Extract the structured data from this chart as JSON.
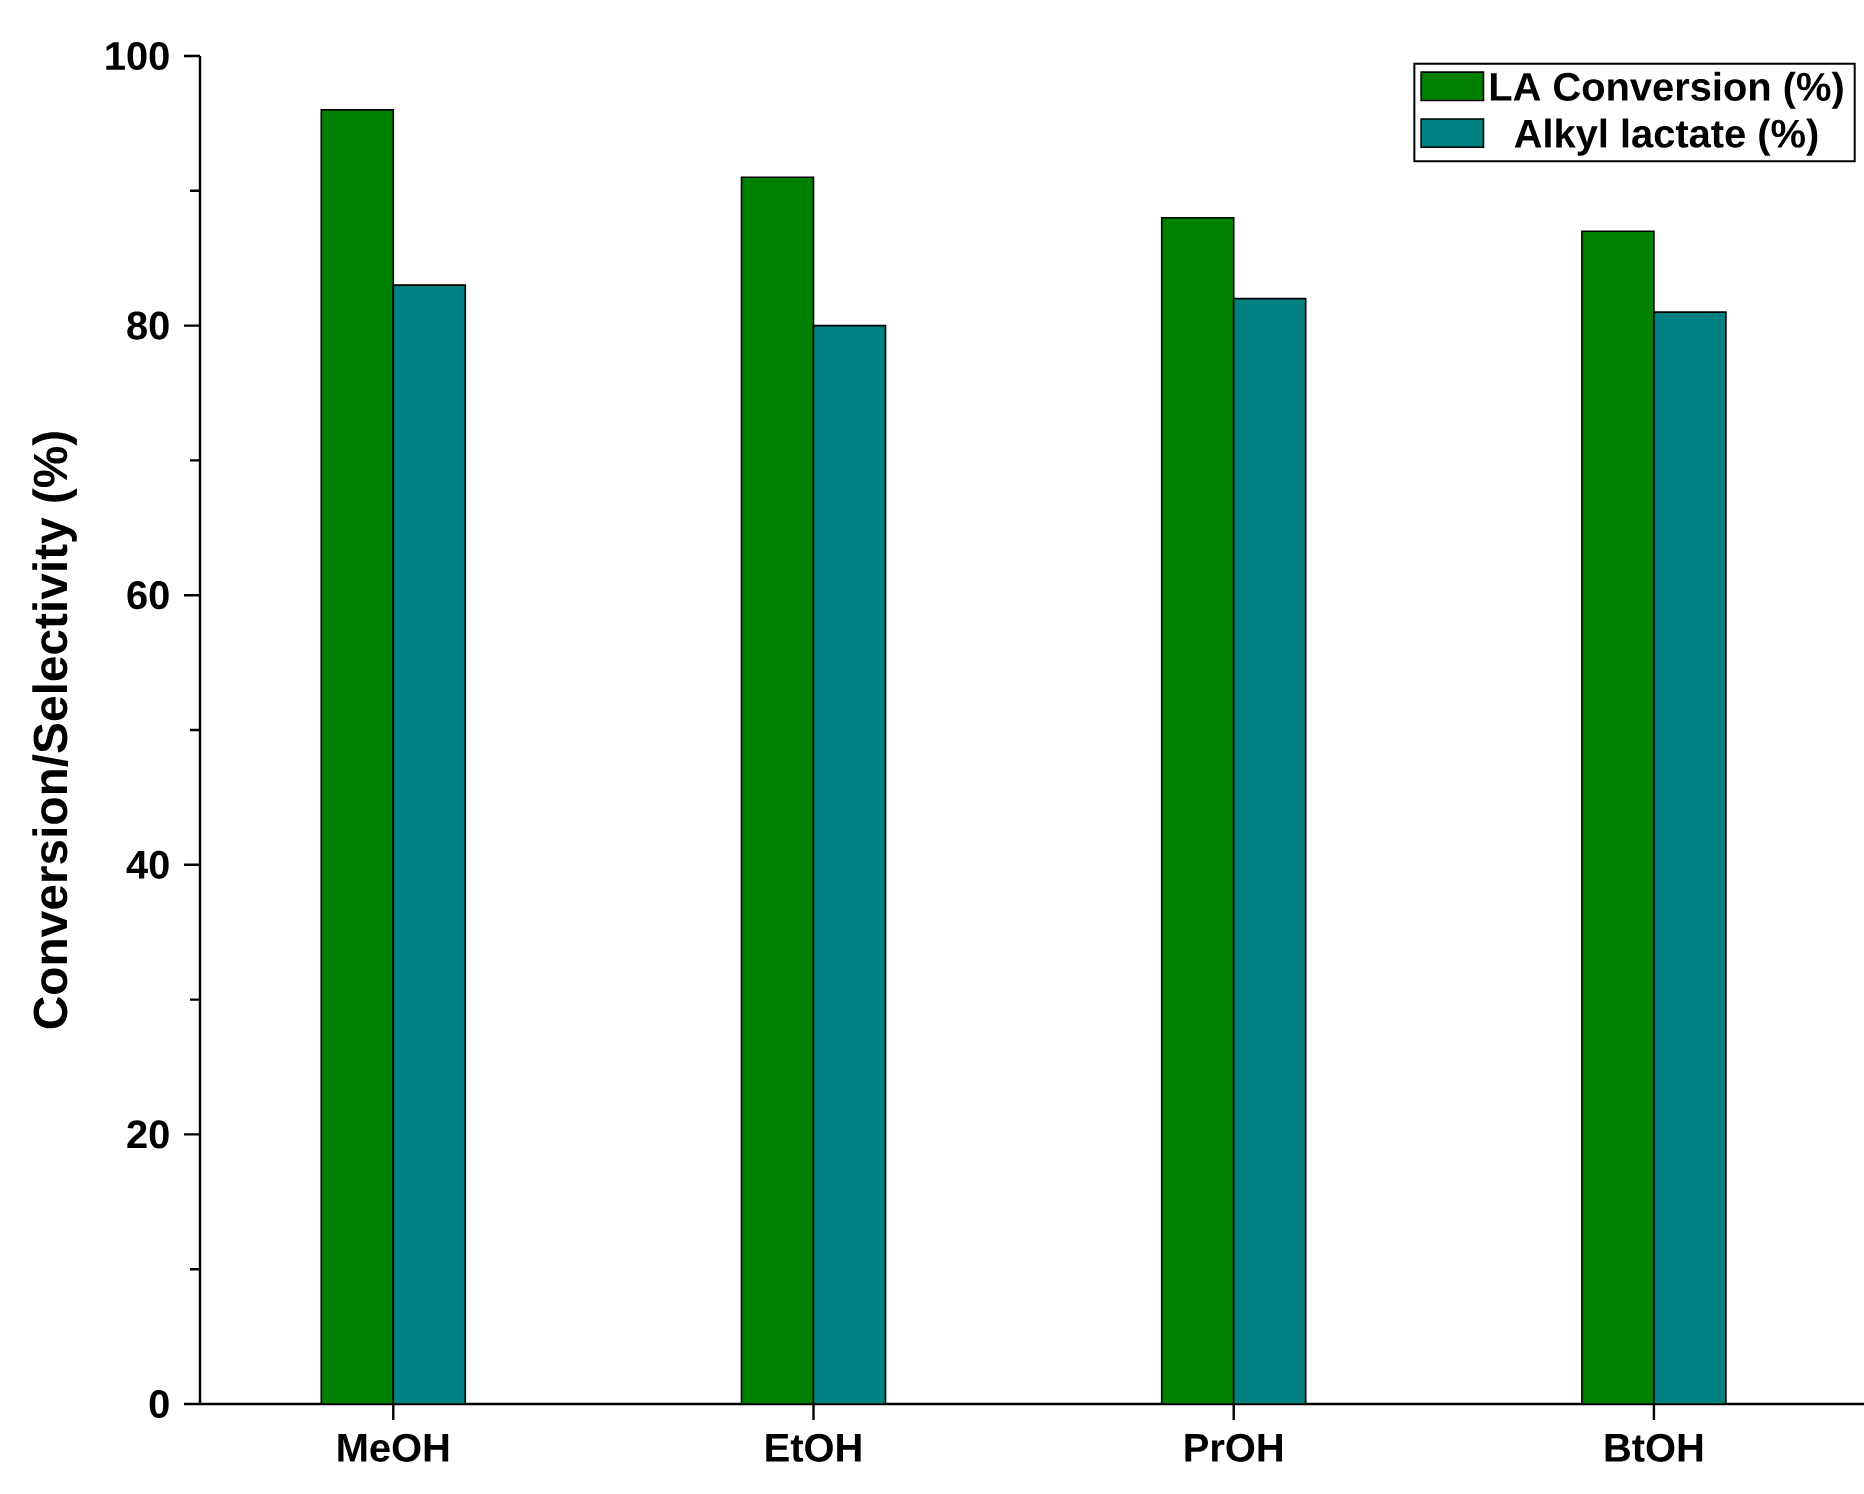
{
  "chart_data": {
    "type": "bar",
    "ylabel": "Conversion/Selectivity (%)",
    "categories": [
      "MeOH",
      "EtOH",
      "PrOH",
      "BtOH"
    ],
    "series": [
      {
        "name": "LA Conversion (%)",
        "color": "#008000",
        "values": [
          96,
          91,
          88,
          87
        ]
      },
      {
        "name": "Alkyl lactate (%)",
        "color": "#008080",
        "values": [
          83,
          80,
          82,
          81
        ]
      }
    ],
    "ylim": [
      0,
      100
    ],
    "yticks": [
      0,
      20,
      40,
      60,
      80,
      100
    ],
    "legend": "top right",
    "grid": false
  }
}
